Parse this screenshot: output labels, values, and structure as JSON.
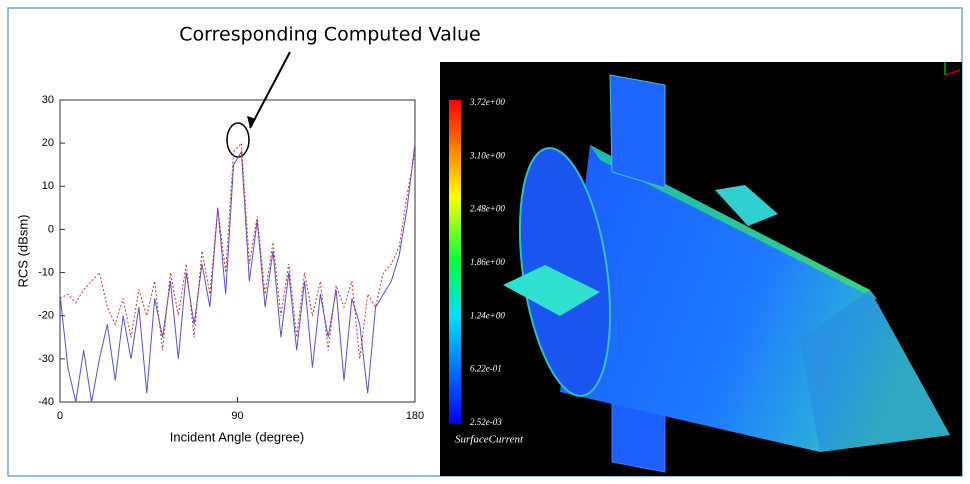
{
  "chart_data": {
    "type": "line",
    "annotation": "Corresponding Computed Value",
    "xlabel": "Incident Angle (degree)",
    "ylabel": "RCS (dBsm)",
    "x": [
      0,
      4,
      8,
      12,
      16,
      20,
      24,
      28,
      32,
      36,
      40,
      44,
      48,
      52,
      56,
      60,
      64,
      68,
      72,
      76,
      80,
      84,
      88,
      92,
      96,
      100,
      104,
      108,
      112,
      116,
      120,
      124,
      128,
      132,
      136,
      140,
      144,
      148,
      152,
      156,
      160,
      164,
      168,
      172,
      176,
      180
    ],
    "series": [
      {
        "color": "#5555cc",
        "dash": "solid",
        "values": [
          -15,
          -32,
          -40,
          -28,
          -40,
          -30,
          -22,
          -35,
          -20,
          -30,
          -18,
          -38,
          -16,
          -25,
          -12,
          -30,
          -10,
          -22,
          -8,
          -18,
          5,
          -15,
          15,
          18,
          -12,
          2,
          -18,
          -5,
          -25,
          -10,
          -28,
          -12,
          -32,
          -15,
          -25,
          -14,
          -35,
          -16,
          -22,
          -38,
          -18,
          -15,
          -12,
          -6,
          5,
          20
        ]
      },
      {
        "color": "#cc3333",
        "dash": "dotted",
        "values": [
          -16,
          -15,
          -17,
          -14,
          -12,
          -10,
          -18,
          -22,
          -16,
          -25,
          -14,
          -20,
          -12,
          -28,
          -10,
          -20,
          -8,
          -25,
          -5,
          -15,
          5,
          -10,
          18,
          20,
          -8,
          3,
          -15,
          -3,
          -20,
          -8,
          -25,
          -10,
          -20,
          -12,
          -28,
          -13,
          -18,
          -12,
          -30,
          -15,
          -18,
          -10,
          -8,
          -4,
          8,
          18
        ]
      }
    ],
    "xlim": [
      0,
      180
    ],
    "xticks": [
      0,
      90,
      180
    ],
    "ylim": [
      -40,
      30
    ],
    "yticks": [
      -40,
      -30,
      -20,
      -10,
      0,
      10,
      20,
      30
    ]
  },
  "render": {
    "colorbar_labels": [
      "3.72e+00",
      "3.10e+00",
      "2.48e+00",
      "1.86e+00",
      "1.24e+00",
      "6.22e-01",
      "2.52e-03"
    ],
    "colorbar_title": "SurfaceCurrent"
  }
}
